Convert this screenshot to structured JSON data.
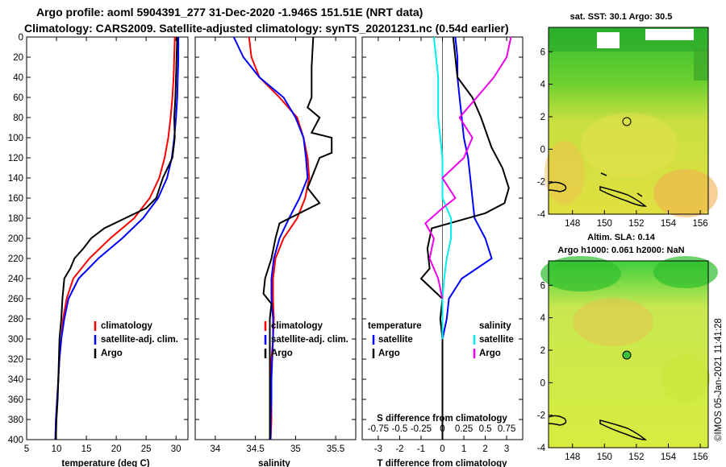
{
  "header": {
    "line1": "Argo profile: aoml 5904391_277 31-Dec-2020 -1.946S 151.51E (NRT data)",
    "line2": "Climatology: CARS2009. Satellite-adjusted climatology: synTS_20201231.nc (0.54d earlier)"
  },
  "footer_credit": "©IMOS 05-Jan-2021 11:41:28",
  "colors": {
    "climatology": "#ff0000",
    "satellite": "#0000ff",
    "argo": "#000000",
    "satellite_s": "#00eeee",
    "argo_s": "#ee00ee",
    "axis": "#000000"
  },
  "chart_data": [
    {
      "id": "temperature",
      "type": "line",
      "xlabel": "temperature (deg C)",
      "ylabel": "",
      "xlim": [
        5,
        32
      ],
      "ylim": [
        400,
        0
      ],
      "xticks": [
        5,
        10,
        15,
        20,
        25,
        30
      ],
      "yticks": [
        0,
        20,
        40,
        60,
        80,
        100,
        120,
        140,
        160,
        180,
        200,
        220,
        240,
        260,
        280,
        300,
        320,
        340,
        360,
        380,
        400
      ],
      "legend": [
        "climatology",
        "satellite-adj. clim.",
        "Argo"
      ],
      "series": [
        {
          "name": "climatology",
          "color": "#ff0000",
          "values": [
            [
              29.8,
              0
            ],
            [
              29.7,
              20
            ],
            [
              29.6,
              40
            ],
            [
              29.4,
              60
            ],
            [
              29.1,
              80
            ],
            [
              28.7,
              100
            ],
            [
              28.1,
              120
            ],
            [
              27.2,
              140
            ],
            [
              25.6,
              160
            ],
            [
              23.0,
              180
            ],
            [
              19.0,
              200
            ],
            [
              15.5,
              220
            ],
            [
              12.8,
              240
            ],
            [
              11.7,
              260
            ],
            [
              11.1,
              280
            ],
            [
              10.8,
              300
            ],
            [
              10.5,
              320
            ],
            [
              10.3,
              340
            ],
            [
              10.1,
              360
            ],
            [
              9.9,
              380
            ],
            [
              9.8,
              400
            ]
          ]
        },
        {
          "name": "satellite-adj. clim.",
          "color": "#0000ff",
          "values": [
            [
              30.4,
              0
            ],
            [
              30.4,
              20
            ],
            [
              30.3,
              40
            ],
            [
              30.2,
              60
            ],
            [
              30.0,
              80
            ],
            [
              29.7,
              100
            ],
            [
              29.3,
              120
            ],
            [
              28.5,
              140
            ],
            [
              27.0,
              160
            ],
            [
              24.5,
              180
            ],
            [
              21.0,
              200
            ],
            [
              17.0,
              220
            ],
            [
              13.7,
              240
            ],
            [
              12.0,
              260
            ],
            [
              11.3,
              280
            ],
            [
              10.8,
              300
            ],
            [
              10.5,
              320
            ],
            [
              10.3,
              340
            ],
            [
              10.1,
              360
            ],
            [
              9.9,
              380
            ],
            [
              9.8,
              400
            ]
          ]
        },
        {
          "name": "Argo",
          "color": "#000000",
          "values": [
            [
              30.2,
              0
            ],
            [
              30.1,
              20
            ],
            [
              30.0,
              40
            ],
            [
              29.9,
              60
            ],
            [
              29.7,
              80
            ],
            [
              29.8,
              100
            ],
            [
              29.4,
              120
            ],
            [
              27.8,
              140
            ],
            [
              26.7,
              160
            ],
            [
              25.0,
              170
            ],
            [
              18.0,
              190
            ],
            [
              15.8,
              200
            ],
            [
              14.5,
              210
            ],
            [
              13.0,
              220
            ],
            [
              12.3,
              230
            ],
            [
              11.3,
              240
            ],
            [
              11.0,
              260
            ],
            [
              10.8,
              280
            ],
            [
              10.5,
              300
            ],
            [
              10.4,
              320
            ],
            [
              10.3,
              340
            ],
            [
              10.2,
              360
            ],
            [
              10.0,
              380
            ],
            [
              9.9,
              400
            ]
          ]
        }
      ]
    },
    {
      "id": "salinity",
      "type": "line",
      "xlabel": "salinity",
      "xlim": [
        33.75,
        35.75
      ],
      "ylim": [
        400,
        0
      ],
      "xticks": [
        34,
        34.5,
        35,
        35.5
      ],
      "xtick_labels": [
        "34",
        "34.5",
        "35",
        "35.5"
      ],
      "legend": [
        "climatology",
        "satellite-adj. clim.",
        "Argo"
      ],
      "series": [
        {
          "name": "climatology",
          "color": "#ff0000",
          "values": [
            [
              34.42,
              0
            ],
            [
              34.45,
              20
            ],
            [
              34.55,
              40
            ],
            [
              34.8,
              60
            ],
            [
              35.02,
              80
            ],
            [
              35.1,
              100
            ],
            [
              35.15,
              120
            ],
            [
              35.17,
              140
            ],
            [
              35.12,
              160
            ],
            [
              35.02,
              180
            ],
            [
              34.85,
              200
            ],
            [
              34.75,
              220
            ],
            [
              34.72,
              240
            ],
            [
              34.72,
              260
            ],
            [
              34.73,
              280
            ],
            [
              34.72,
              300
            ],
            [
              34.7,
              320
            ],
            [
              34.7,
              340
            ],
            [
              34.7,
              360
            ],
            [
              34.7,
              380
            ],
            [
              34.69,
              400
            ]
          ]
        },
        {
          "name": "satellite-adj. clim.",
          "color": "#0000ff",
          "values": [
            [
              34.23,
              0
            ],
            [
              34.35,
              20
            ],
            [
              34.55,
              40
            ],
            [
              34.85,
              60
            ],
            [
              35.0,
              80
            ],
            [
              35.1,
              100
            ],
            [
              35.13,
              120
            ],
            [
              35.15,
              140
            ],
            [
              35.05,
              160
            ],
            [
              34.92,
              180
            ],
            [
              34.8,
              200
            ],
            [
              34.73,
              220
            ],
            [
              34.7,
              240
            ],
            [
              34.7,
              260
            ],
            [
              34.72,
              280
            ],
            [
              34.72,
              300
            ],
            [
              34.71,
              320
            ],
            [
              34.7,
              340
            ],
            [
              34.7,
              360
            ],
            [
              34.69,
              380
            ],
            [
              34.69,
              400
            ]
          ]
        },
        {
          "name": "Argo",
          "color": "#000000",
          "values": [
            [
              35.22,
              0
            ],
            [
              35.2,
              30
            ],
            [
              35.2,
              60
            ],
            [
              35.15,
              70
            ],
            [
              35.3,
              80
            ],
            [
              35.2,
              95
            ],
            [
              35.45,
              100
            ],
            [
              35.45,
              115
            ],
            [
              35.3,
              120
            ],
            [
              35.2,
              140
            ],
            [
              35.15,
              150
            ],
            [
              35.3,
              165
            ],
            [
              35.05,
              175
            ],
            [
              34.8,
              185
            ],
            [
              34.75,
              200
            ],
            [
              34.7,
              220
            ],
            [
              34.62,
              240
            ],
            [
              34.6,
              255
            ],
            [
              34.7,
              265
            ],
            [
              34.68,
              280
            ],
            [
              34.68,
              300
            ],
            [
              34.68,
              320
            ],
            [
              34.68,
              340
            ],
            [
              34.68,
              360
            ],
            [
              34.68,
              380
            ],
            [
              34.68,
              400
            ]
          ]
        }
      ]
    },
    {
      "id": "difference",
      "type": "line",
      "xlabel": "T difference from climatology",
      "inner_label": "S difference from climatology",
      "xlim": [
        -3.75,
        3.75
      ],
      "ylim": [
        400,
        0
      ],
      "xticks": [
        -3,
        -2,
        -1,
        0,
        1,
        2,
        3
      ],
      "xtick_labels": [
        "-3",
        "-2",
        "-1",
        "0",
        "1",
        "2",
        "3"
      ],
      "sticks": [
        -0.75,
        -0.5,
        -0.25,
        0,
        0.25,
        0.5,
        0.75
      ],
      "stick_labels": [
        "-0.75",
        "-0.5",
        "-0.25",
        "0",
        "0.25",
        "0.5",
        "0.75"
      ],
      "legend_t_title": "temperature",
      "legend_s_title": "salinity",
      "legend_t": [
        "satellite",
        "Argo"
      ],
      "legend_s": [
        "satellite",
        "Argo"
      ],
      "series": [
        {
          "name": "T satellite",
          "color": "#0000ff",
          "values": [
            [
              0.6,
              0
            ],
            [
              0.7,
              20
            ],
            [
              0.7,
              40
            ],
            [
              0.8,
              60
            ],
            [
              0.9,
              80
            ],
            [
              1.0,
              100
            ],
            [
              1.2,
              120
            ],
            [
              1.3,
              140
            ],
            [
              1.4,
              160
            ],
            [
              1.5,
              180
            ],
            [
              2.0,
              200
            ],
            [
              2.3,
              220
            ],
            [
              0.9,
              240
            ],
            [
              0.3,
              260
            ],
            [
              0.2,
              280
            ],
            [
              0.0,
              300
            ],
            [
              0.0,
              400
            ]
          ]
        },
        {
          "name": "T Argo",
          "color": "#000000",
          "values": [
            [
              0.5,
              0
            ],
            [
              0.6,
              20
            ],
            [
              0.7,
              40
            ],
            [
              1.4,
              60
            ],
            [
              1.8,
              80
            ],
            [
              2.3,
              110
            ],
            [
              2.8,
              130
            ],
            [
              3.1,
              150
            ],
            [
              2.9,
              165
            ],
            [
              2.0,
              175
            ],
            [
              -0.5,
              190
            ],
            [
              -0.7,
              210
            ],
            [
              -0.6,
              230
            ],
            [
              -1.0,
              240
            ],
            [
              0.0,
              260
            ],
            [
              -0.1,
              280
            ],
            [
              0.0,
              300
            ],
            [
              0.0,
              320
            ],
            [
              0.0,
              400
            ]
          ]
        },
        {
          "name": "S satellite",
          "color": "#00eeee",
          "values": [
            [
              -0.1,
              0
            ],
            [
              -0.05,
              40
            ],
            [
              -0.05,
              80
            ],
            [
              0.0,
              120
            ],
            [
              0.0,
              160
            ],
            [
              0.1,
              180
            ],
            [
              0.1,
              200
            ],
            [
              0.05,
              220
            ],
            [
              0.02,
              240
            ],
            [
              0.0,
              260
            ],
            [
              0.0,
              280
            ],
            [
              0.0,
              300
            ]
          ]
        },
        {
          "name": "S Argo",
          "color": "#ee00ee",
          "values": [
            [
              0.8,
              0
            ],
            [
              0.75,
              20
            ],
            [
              0.6,
              40
            ],
            [
              0.4,
              60
            ],
            [
              0.2,
              80
            ],
            [
              0.35,
              100
            ],
            [
              0.25,
              120
            ],
            [
              0.0,
              140
            ],
            [
              0.15,
              160
            ],
            [
              0.0,
              170
            ],
            [
              -0.2,
              185
            ],
            [
              -0.1,
              200
            ],
            [
              -0.15,
              220
            ],
            [
              -0.05,
              240
            ],
            [
              0.0,
              260
            ]
          ]
        }
      ]
    },
    {
      "id": "sst_map",
      "type": "heatmap",
      "title": "sat. SST: 30.1 Argo: 30.5",
      "xlim": [
        146.5,
        156.5
      ],
      "ylim": [
        -4,
        7.5
      ],
      "xticks": [
        148,
        150,
        152,
        154,
        156
      ],
      "yticks": [
        -4,
        -2,
        0,
        2,
        4,
        6
      ],
      "marker": [
        151.51,
        1.95
      ]
    },
    {
      "id": "sla_map",
      "type": "heatmap",
      "title_line1": "Altim. SLA: 0.14",
      "title_line2": "Argo h1000: 0.061 h2000: NaN",
      "xlim": [
        146.5,
        156.5
      ],
      "ylim": [
        -4,
        7.5
      ],
      "xticks": [
        148,
        150,
        152,
        154,
        156
      ],
      "yticks": [
        -4,
        -2,
        0,
        2,
        4,
        6
      ],
      "marker": [
        151.51,
        1.95
      ]
    }
  ]
}
